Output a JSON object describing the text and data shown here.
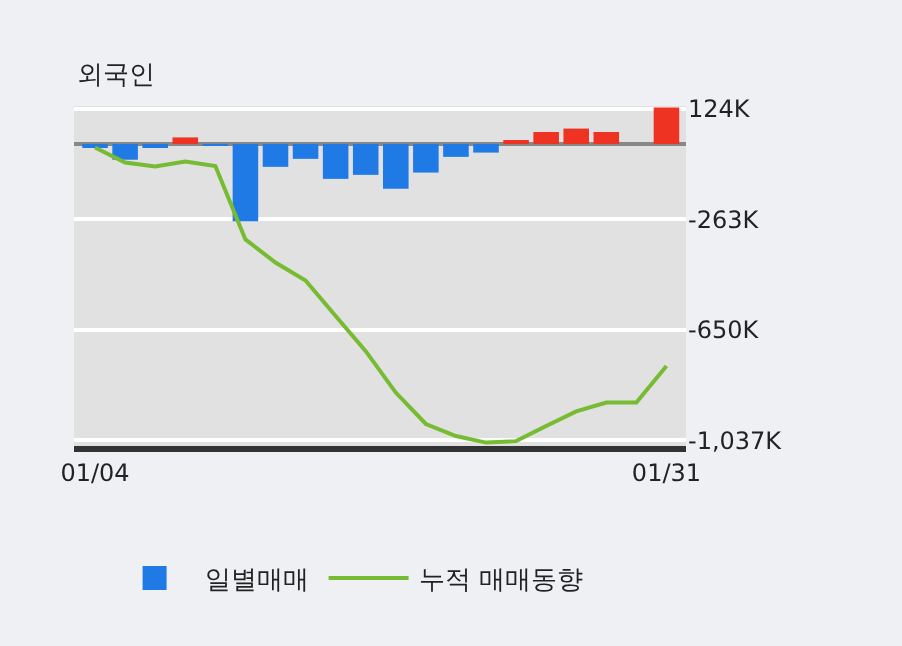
{
  "chart_data": {
    "type": "bar",
    "title": "외국인",
    "categories": [
      "01/04",
      null,
      null,
      null,
      null,
      null,
      null,
      null,
      null,
      null,
      null,
      null,
      null,
      null,
      null,
      null,
      null,
      null,
      null,
      "01/31"
    ],
    "series": [
      {
        "name": "일별매매",
        "colors": [
          "#1f7ae6",
          "#1f7ae6",
          "#1f7ae6",
          "#ee3323",
          "#1f7ae6",
          "#1f7ae6",
          "#1f7ae6",
          "#1f7ae6",
          "#1f7ae6",
          "#1f7ae6",
          "#1f7ae6",
          "#1f7ae6",
          "#1f7ae6",
          "#1f7ae6",
          "#ee3323",
          "#ee3323",
          "#ee3323",
          "#ee3323",
          "#ee3323",
          "#ee3323"
        ],
        "values": [
          -12,
          -55,
          -12,
          23,
          -5,
          -270,
          -80,
          -52,
          -122,
          -108,
          -157,
          -100,
          -45,
          -30,
          10,
          42,
          54,
          42,
          0,
          128
        ]
      },
      {
        "name": "누적 매매동향",
        "type": "line",
        "color": "#77bb33",
        "values": [
          -12,
          -65,
          -79,
          -61,
          -77,
          -334,
          -415,
          -478,
          -602,
          -725,
          -870,
          -980,
          -1022,
          -1045,
          -1040,
          -987,
          -936,
          -905,
          -905,
          -777
        ]
      }
    ],
    "ylim": [
      -1057,
      133
    ],
    "yticks": [
      {
        "value": 124,
        "label": "124K"
      },
      {
        "value": -263,
        "label": "-263K"
      },
      {
        "value": -650,
        "label": "-650K"
      },
      {
        "value": -1037,
        "label": "-1,037K"
      }
    ],
    "grid": "y",
    "legend": "bottom",
    "marker": "none",
    "line_style": "solid"
  }
}
